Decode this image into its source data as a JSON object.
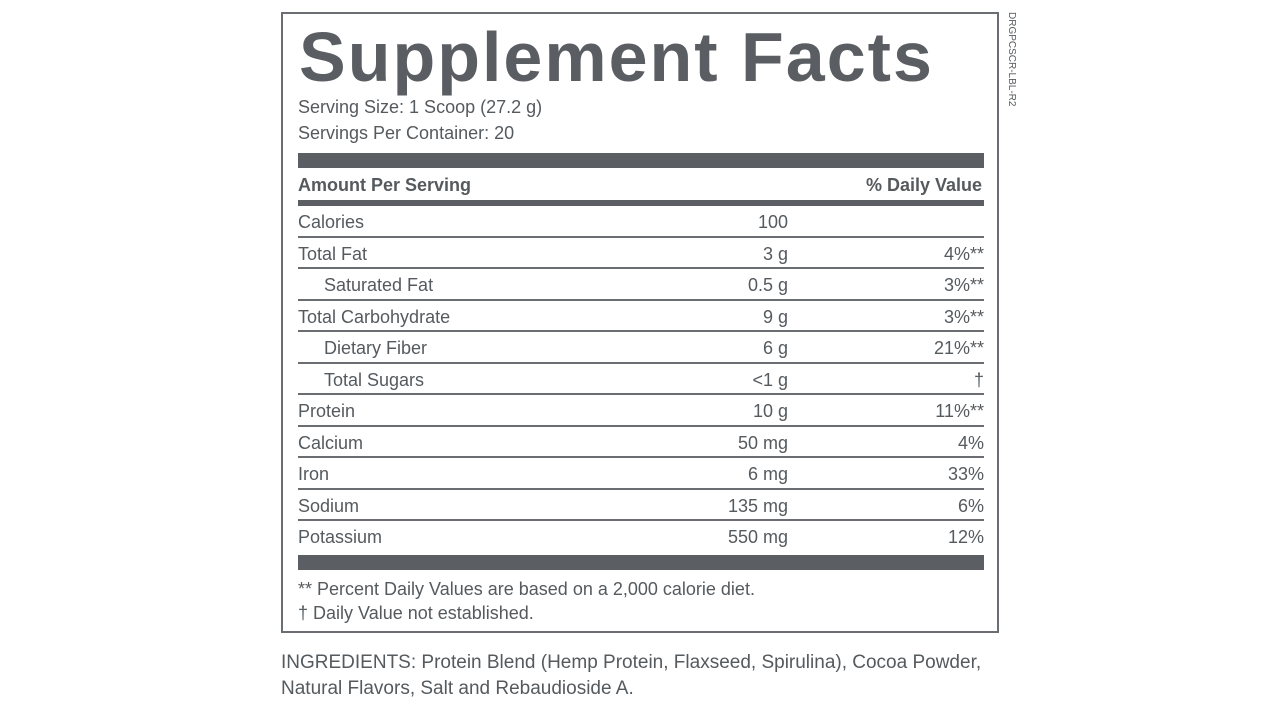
{
  "label": {
    "title": "Supplement Facts",
    "serving_size": "Serving Size: 1 Scoop (27.2 g)",
    "servings_per_container": "Servings Per Container: 20",
    "side_code": "DRGPCSCR-LBL-R2",
    "header_left": "Amount Per Serving",
    "header_right": "% Daily Value",
    "rows": [
      {
        "name": "Calories",
        "amount": "100",
        "dv": "",
        "indent": false
      },
      {
        "name": "Total Fat",
        "amount": "3 g",
        "dv": "4%**",
        "indent": false
      },
      {
        "name": "Saturated Fat",
        "amount": "0.5 g",
        "dv": "3%**",
        "indent": true
      },
      {
        "name": "Total Carbohydrate",
        "amount": "9 g",
        "dv": "3%**",
        "indent": false
      },
      {
        "name": "Dietary Fiber",
        "amount": "6 g",
        "dv": "21%**",
        "indent": true
      },
      {
        "name": "Total Sugars",
        "amount": "<1 g",
        "dv": "†",
        "indent": true
      },
      {
        "name": "Protein",
        "amount": "10 g",
        "dv": "11%**",
        "indent": false
      },
      {
        "name": "Calcium",
        "amount": "50 mg",
        "dv": "4%",
        "indent": false
      },
      {
        "name": "Iron",
        "amount": "6 mg",
        "dv": "33%",
        "indent": false
      },
      {
        "name": "Sodium",
        "amount": "135 mg",
        "dv": "6%",
        "indent": false
      },
      {
        "name": "Potassium",
        "amount": "550 mg",
        "dv": "12%",
        "indent": false
      }
    ],
    "footnote_1": "** Percent Daily Values are based on a 2,000 calorie diet.",
    "footnote_2": "† Daily Value not established."
  },
  "ingredients": "INGREDIENTS: Protein Blend (Hemp Protein, Flaxseed, Spirulina), Cocoa Powder, Natural Flavors, Salt and Rebaudioside A.",
  "colors": {
    "text": "#555a5e",
    "bar": "#5b5f63",
    "border": "#6a6e72"
  }
}
